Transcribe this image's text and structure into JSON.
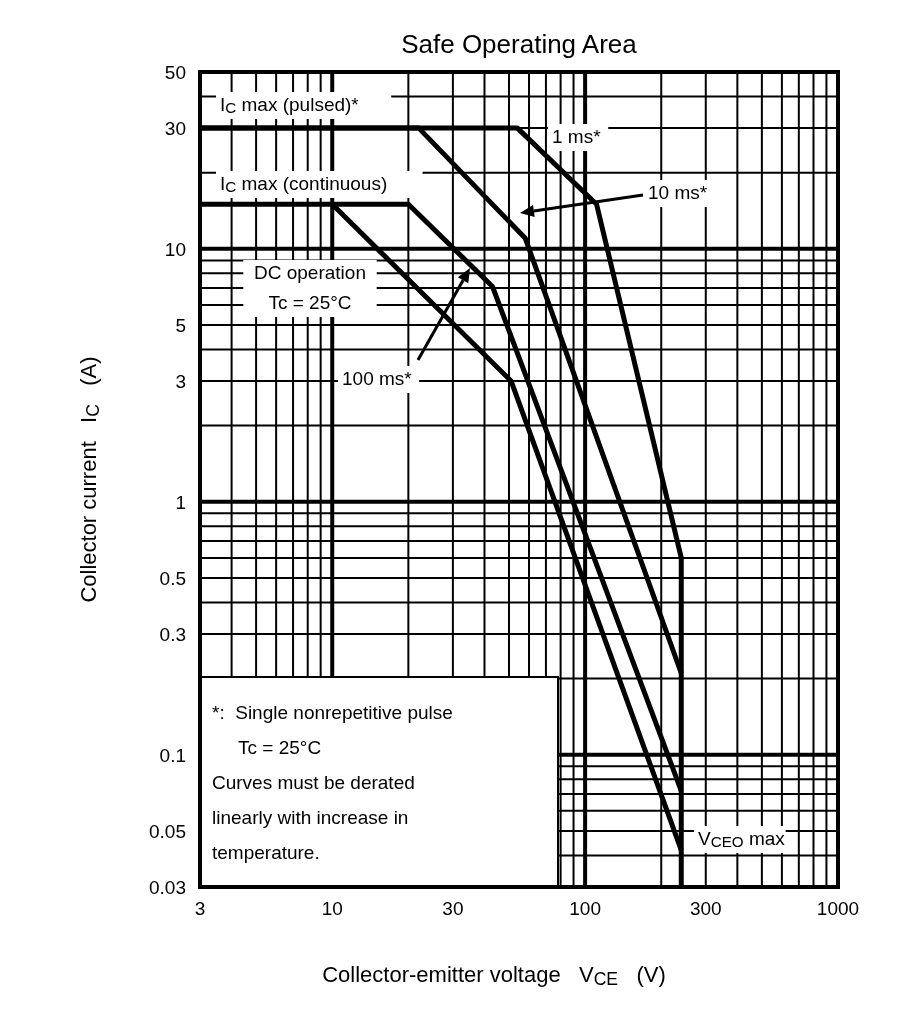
{
  "chart_data": {
    "type": "line",
    "title": "Safe Operating Area",
    "xlabel": "Collector-emitter voltage   V$_{CE}$   (V)",
    "ylabel": "Collector current   I$_{C}$   (A)",
    "log": "xy",
    "grid": true,
    "line_style": "solid",
    "xlim": [
      3,
      1000
    ],
    "xticks": [
      3,
      10,
      30,
      100,
      300,
      1000
    ],
    "ylim": [
      0.03,
      50
    ],
    "yticks": [
      0.03,
      0.05,
      0.1,
      0.3,
      0.5,
      1,
      3,
      5,
      10,
      30,
      50
    ],
    "series": [
      {
        "color": "#000000",
        "x": [
          3,
          54,
          111,
          240,
          240
        ],
        "values": [
          30,
          30,
          15,
          0.6,
          0.03
        ]
      },
      {
        "color": "#000000",
        "x": [
          3,
          22,
          58,
          240
        ],
        "values": [
          30,
          30,
          11,
          0.21
        ]
      },
      {
        "color": "#000000",
        "x": [
          3,
          20,
          43,
          240
        ],
        "values": [
          15,
          15,
          7.1,
          0.072
        ]
      },
      {
        "color": "#000000",
        "x": [
          10,
          51,
          240
        ],
        "values": [
          15,
          3,
          0.042
        ]
      }
    ],
    "annotations": [
      "I$_{C}$ max (pulsed)*",
      "I$_{C}$ max (continuous)",
      "1 ms*",
      "10 ms*",
      "DC operation\nTc = 25°C",
      "100 ms*",
      "V$_{CEO}$ max",
      "*:  Single nonrepetitive pulse\n     Tc = 25°C\nCurves must be derated\nlinearly with increase in\ntemperature."
    ]
  }
}
